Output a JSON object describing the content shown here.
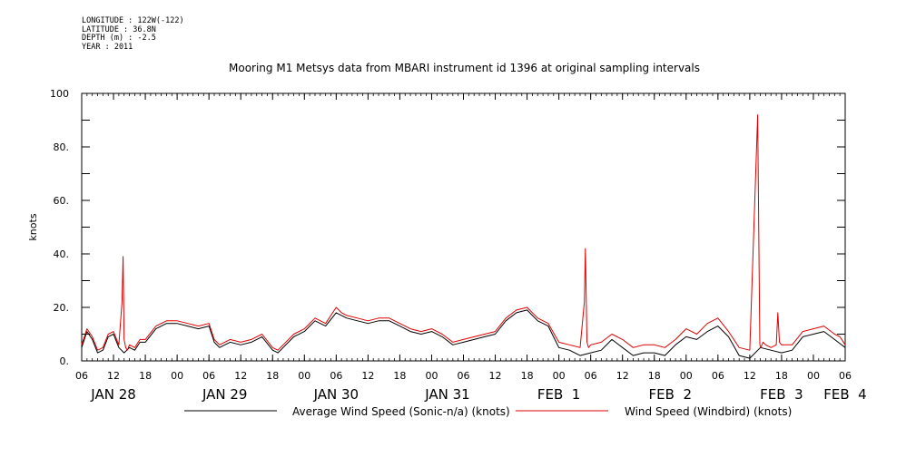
{
  "meta_lines": [
    "LONGITUDE : 122W(-122)",
    "LATITUDE : 36.8N",
    "DEPTH (m) : -2.5",
    "YEAR : 2011"
  ],
  "chart_data": {
    "type": "line",
    "title": "Mooring M1 Metsys data from MBARI instrument id 1396 at original sampling intervals",
    "ylabel": "knots",
    "ylim": [
      0,
      100
    ],
    "yticks": [
      0,
      20,
      40,
      60,
      80,
      100
    ],
    "ytick_labels": [
      "0.",
      "20.",
      "40.",
      "60.",
      "80.",
      "100"
    ],
    "x_unit": "hours since 2011-01-28 00:00",
    "xlim": [
      6,
      150
    ],
    "xtick_hours": [
      6,
      12,
      18,
      24,
      30,
      36,
      42,
      48,
      54,
      60,
      66,
      72,
      78,
      84,
      90,
      96,
      102,
      108,
      114,
      120,
      126,
      132,
      138,
      144,
      150
    ],
    "xtick_labels": [
      "06",
      "12",
      "18",
      "00",
      "06",
      "12",
      "18",
      "00",
      "06",
      "12",
      "18",
      "00",
      "06",
      "12",
      "18",
      "00",
      "06",
      "12",
      "18",
      "00",
      "06",
      "12",
      "18",
      "00",
      "06"
    ],
    "day_labels": [
      {
        "hour": 12,
        "label": "JAN 28"
      },
      {
        "hour": 33,
        "label": "JAN 29"
      },
      {
        "hour": 54,
        "label": "JAN 30"
      },
      {
        "hour": 75,
        "label": "JAN 31"
      },
      {
        "hour": 96,
        "label": "FEB  1"
      },
      {
        "hour": 117,
        "label": "FEB  2"
      },
      {
        "hour": 138,
        "label": "FEB  3"
      },
      {
        "hour": 150,
        "label": "FEB  4"
      }
    ],
    "grid": false,
    "legend_placement": "bottom",
    "series": [
      {
        "name": "Average Wind Speed (Sonic-n/a) (knots)",
        "color": "#000000",
        "x": [
          6,
          7,
          8,
          9,
          10,
          11,
          12,
          13,
          14,
          15,
          16,
          17,
          18,
          20,
          22,
          24,
          26,
          28,
          30,
          31,
          32,
          34,
          36,
          38,
          40,
          42,
          43,
          44,
          46,
          48,
          50,
          52,
          54,
          55,
          56,
          58,
          60,
          62,
          64,
          66,
          68,
          70,
          72,
          74,
          76,
          78,
          80,
          82,
          84,
          86,
          88,
          90,
          92,
          94,
          96,
          98,
          100,
          102,
          104,
          106,
          108,
          110,
          112,
          114,
          116,
          118,
          120,
          122,
          124,
          126,
          128,
          130,
          132,
          134,
          136,
          138,
          140,
          142,
          144,
          146,
          148,
          150
        ],
        "y": [
          5,
          11,
          8,
          3,
          4,
          9,
          10,
          5,
          3,
          5,
          4,
          7,
          7,
          12,
          14,
          14,
          13,
          12,
          13,
          7,
          5,
          7,
          6,
          7,
          9,
          4,
          3,
          5,
          9,
          11,
          15,
          13,
          18,
          17,
          16,
          15,
          14,
          15,
          15,
          13,
          11,
          10,
          11,
          9,
          6,
          7,
          8,
          9,
          10,
          15,
          18,
          19,
          15,
          13,
          5,
          4,
          2,
          3,
          4,
          8,
          5,
          2,
          3,
          3,
          2,
          6,
          9,
          8,
          11,
          13,
          9,
          2,
          1,
          5,
          4,
          3,
          4,
          9,
          10,
          11,
          8,
          5
        ]
      },
      {
        "name": "Wind Speed (Windbird) (knots)",
        "color": "#e00000",
        "x": [
          6,
          7,
          8,
          9,
          10,
          11,
          12,
          13,
          13.6,
          13.8,
          14,
          14.3,
          14.6,
          15,
          16,
          17,
          18,
          20,
          22,
          24,
          26,
          28,
          30,
          31,
          32,
          34,
          36,
          38,
          40,
          42,
          43,
          44,
          46,
          48,
          50,
          52,
          54,
          55,
          56,
          58,
          60,
          62,
          64,
          66,
          68,
          70,
          72,
          74,
          76,
          78,
          80,
          82,
          84,
          86,
          88,
          90,
          92,
          94,
          96,
          98,
          100,
          100.8,
          101,
          101.3,
          101.6,
          102,
          104,
          106,
          108,
          110,
          112,
          114,
          116,
          118,
          120,
          122,
          124,
          126,
          128,
          130,
          132,
          133.5,
          133.7,
          133.9,
          134.1,
          134.5,
          135,
          136,
          137,
          137.3,
          137.6,
          138,
          140,
          142,
          144,
          146,
          148,
          149,
          150
        ],
        "y": [
          6,
          12,
          9,
          4,
          5,
          10,
          11,
          6,
          22,
          39,
          8,
          5,
          4,
          6,
          5,
          8,
          8,
          13,
          15,
          15,
          14,
          13,
          14,
          8,
          6,
          8,
          7,
          8,
          10,
          5,
          4,
          6,
          10,
          12,
          16,
          14,
          20,
          18,
          17,
          16,
          15,
          16,
          16,
          14,
          12,
          11,
          12,
          10,
          7,
          8,
          9,
          10,
          11,
          16,
          19,
          20,
          16,
          14,
          7,
          6,
          5,
          22,
          42,
          7,
          5,
          6,
          7,
          10,
          8,
          5,
          6,
          6,
          5,
          8,
          12,
          10,
          14,
          16,
          11,
          5,
          4,
          92,
          48,
          6,
          5,
          7,
          6,
          5,
          6,
          18,
          7,
          6,
          6,
          11,
          12,
          13,
          10,
          9,
          6
        ]
      }
    ]
  }
}
